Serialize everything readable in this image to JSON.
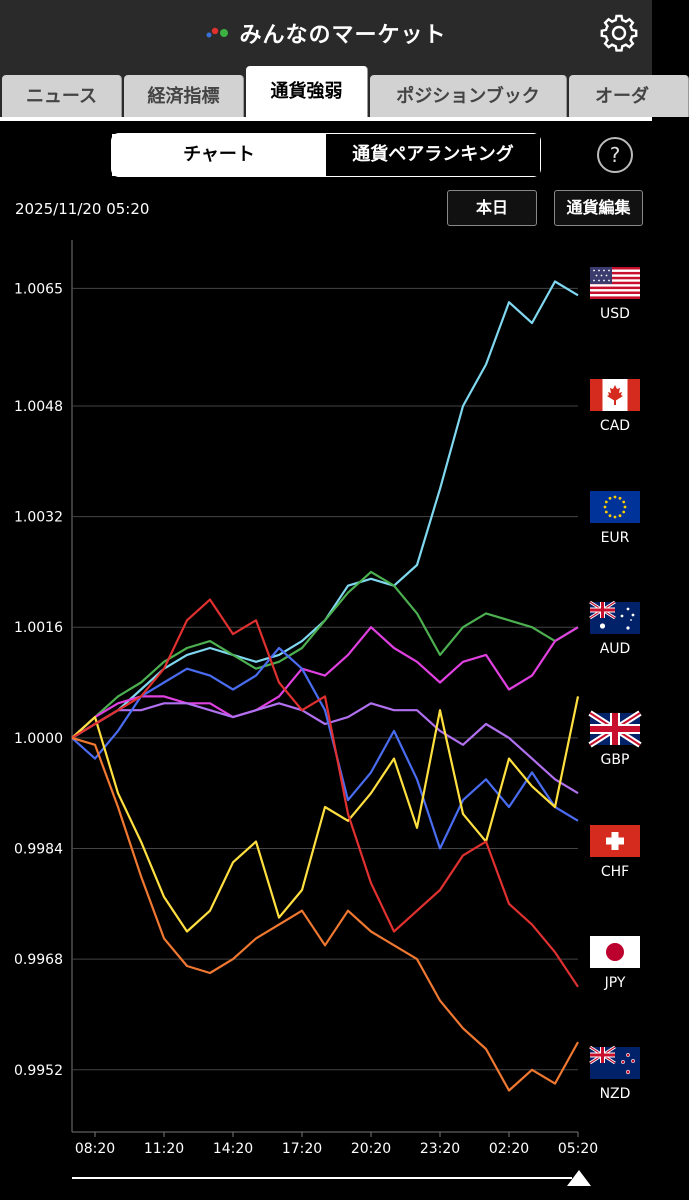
{
  "app": {
    "title": "みんなのマーケット"
  },
  "tabs": [
    {
      "label": "ニュース"
    },
    {
      "label": "経済指標"
    },
    {
      "label": "通貨強弱"
    },
    {
      "label": "ポジションブック"
    },
    {
      "label": "オーダ"
    }
  ],
  "segment": {
    "chart": "チャート",
    "ranking": "通貨ペアランキング"
  },
  "help_label": "?",
  "toolbar": {
    "timestamp": "2025/11/20 05:20",
    "period_button": "本日",
    "edit_button": "通貨編集"
  },
  "currencies": [
    {
      "code": "USD",
      "flag": "us"
    },
    {
      "code": "CAD",
      "flag": "ca"
    },
    {
      "code": "EUR",
      "flag": "eu"
    },
    {
      "code": "AUD",
      "flag": "au"
    },
    {
      "code": "GBP",
      "flag": "gb"
    },
    {
      "code": "CHF",
      "flag": "ch"
    },
    {
      "code": "JPY",
      "flag": "jp"
    },
    {
      "code": "NZD",
      "flag": "nz"
    }
  ],
  "chart_data": {
    "type": "line",
    "title": "",
    "xlabel": "",
    "ylabel": "",
    "x_ticks": [
      "08:20",
      "11:20",
      "14:20",
      "17:20",
      "20:20",
      "23:20",
      "02:20",
      "05:20"
    ],
    "x_tick_hours": [
      1,
      4,
      7,
      10,
      13,
      16,
      19,
      22
    ],
    "x_range_hours": [
      0,
      22
    ],
    "y_ticks": [
      1.0065,
      1.0048,
      1.0032,
      1.0016,
      1.0,
      0.9984,
      0.9968,
      0.9952
    ],
    "ylim": [
      0.9943,
      1.0072
    ],
    "grid": true,
    "series": [
      {
        "color": "#80d8f0",
        "points": [
          [
            0,
            1.0
          ],
          [
            1,
            1.0002
          ],
          [
            2,
            1.0004
          ],
          [
            3,
            1.0007
          ],
          [
            4,
            1.001
          ],
          [
            5,
            1.0012
          ],
          [
            6,
            1.0013
          ],
          [
            7,
            1.0012
          ],
          [
            8,
            1.0011
          ],
          [
            9,
            1.0012
          ],
          [
            10,
            1.0014
          ],
          [
            11,
            1.0017
          ],
          [
            12,
            1.0022
          ],
          [
            13,
            1.0023
          ],
          [
            14,
            1.0022
          ],
          [
            15,
            1.0025
          ],
          [
            16,
            1.0036
          ],
          [
            17,
            1.0048
          ],
          [
            18,
            1.0054
          ],
          [
            19,
            1.0063
          ],
          [
            20,
            1.006
          ],
          [
            21,
            1.0066
          ],
          [
            22,
            1.0064
          ]
        ]
      },
      {
        "color": "#4caf50",
        "points": [
          [
            0,
            1.0
          ],
          [
            1,
            1.0003
          ],
          [
            2,
            1.0006
          ],
          [
            3,
            1.0008
          ],
          [
            4,
            1.0011
          ],
          [
            5,
            1.0013
          ],
          [
            6,
            1.0014
          ],
          [
            7,
            1.0012
          ],
          [
            8,
            1.001
          ],
          [
            9,
            1.0011
          ],
          [
            10,
            1.0013
          ],
          [
            11,
            1.0017
          ],
          [
            12,
            1.0021
          ],
          [
            13,
            1.0024
          ],
          [
            14,
            1.0022
          ],
          [
            15,
            1.0018
          ],
          [
            16,
            1.0012
          ],
          [
            17,
            1.0016
          ],
          [
            18,
            1.0018
          ],
          [
            19,
            1.0017
          ],
          [
            20,
            1.0016
          ],
          [
            21,
            1.0014
          ],
          [
            22,
            1.0016
          ]
        ]
      },
      {
        "color": "#e040e0",
        "points": [
          [
            0,
            1.0
          ],
          [
            1,
            1.0003
          ],
          [
            2,
            1.0005
          ],
          [
            3,
            1.0006
          ],
          [
            4,
            1.0006
          ],
          [
            5,
            1.0005
          ],
          [
            6,
            1.0005
          ],
          [
            7,
            1.0003
          ],
          [
            8,
            1.0004
          ],
          [
            9,
            1.0006
          ],
          [
            10,
            1.001
          ],
          [
            11,
            1.0009
          ],
          [
            12,
            1.0012
          ],
          [
            13,
            1.0016
          ],
          [
            14,
            1.0013
          ],
          [
            15,
            1.0011
          ],
          [
            16,
            1.0008
          ],
          [
            17,
            1.0011
          ],
          [
            18,
            1.0012
          ],
          [
            19,
            1.0007
          ],
          [
            20,
            1.0009
          ],
          [
            21,
            1.0014
          ],
          [
            22,
            1.0016
          ]
        ]
      },
      {
        "color": "#b070f0",
        "points": [
          [
            0,
            1.0
          ],
          [
            1,
            1.0002
          ],
          [
            2,
            1.0004
          ],
          [
            3,
            1.0004
          ],
          [
            4,
            1.0005
          ],
          [
            5,
            1.0005
          ],
          [
            6,
            1.0004
          ],
          [
            7,
            1.0003
          ],
          [
            8,
            1.0004
          ],
          [
            9,
            1.0005
          ],
          [
            10,
            1.0004
          ],
          [
            11,
            1.0002
          ],
          [
            12,
            1.0003
          ],
          [
            13,
            1.0005
          ],
          [
            14,
            1.0004
          ],
          [
            15,
            1.0004
          ],
          [
            16,
            1.0001
          ],
          [
            17,
            0.9999
          ],
          [
            18,
            1.0002
          ],
          [
            19,
            1.0
          ],
          [
            20,
            0.9997
          ],
          [
            21,
            0.9994
          ],
          [
            22,
            0.9992
          ]
        ]
      },
      {
        "color": "#4a6cf0",
        "points": [
          [
            0,
            1.0
          ],
          [
            1,
            0.9997
          ],
          [
            2,
            1.0001
          ],
          [
            3,
            1.0006
          ],
          [
            4,
            1.0008
          ],
          [
            5,
            1.001
          ],
          [
            6,
            1.0009
          ],
          [
            7,
            1.0007
          ],
          [
            8,
            1.0009
          ],
          [
            9,
            1.0013
          ],
          [
            10,
            1.001
          ],
          [
            11,
            1.0004
          ],
          [
            12,
            0.9991
          ],
          [
            13,
            0.9995
          ],
          [
            14,
            1.0001
          ],
          [
            15,
            0.9994
          ],
          [
            16,
            0.9984
          ],
          [
            17,
            0.9991
          ],
          [
            18,
            0.9994
          ],
          [
            19,
            0.999
          ],
          [
            20,
            0.9995
          ],
          [
            21,
            0.999
          ],
          [
            22,
            0.9988
          ]
        ]
      },
      {
        "color": "#ffe040",
        "points": [
          [
            0,
            1.0
          ],
          [
            1,
            1.0003
          ],
          [
            2,
            0.9992
          ],
          [
            3,
            0.9985
          ],
          [
            4,
            0.9977
          ],
          [
            5,
            0.9972
          ],
          [
            6,
            0.9975
          ],
          [
            7,
            0.9982
          ],
          [
            8,
            0.9985
          ],
          [
            9,
            0.9974
          ],
          [
            10,
            0.9978
          ],
          [
            11,
            0.999
          ],
          [
            12,
            0.9988
          ],
          [
            13,
            0.9992
          ],
          [
            14,
            0.9997
          ],
          [
            15,
            0.9987
          ],
          [
            16,
            1.0004
          ],
          [
            17,
            0.9989
          ],
          [
            18,
            0.9985
          ],
          [
            19,
            0.9997
          ],
          [
            20,
            0.9993
          ],
          [
            21,
            0.999
          ],
          [
            22,
            1.0006
          ]
        ]
      },
      {
        "color": "#e03030",
        "points": [
          [
            0,
            1.0
          ],
          [
            1,
            1.0002
          ],
          [
            2,
            1.0004
          ],
          [
            3,
            1.0006
          ],
          [
            4,
            1.001
          ],
          [
            5,
            1.0017
          ],
          [
            6,
            1.002
          ],
          [
            7,
            1.0015
          ],
          [
            8,
            1.0017
          ],
          [
            9,
            1.0008
          ],
          [
            10,
            1.0004
          ],
          [
            11,
            1.0006
          ],
          [
            12,
            0.9989
          ],
          [
            13,
            0.9979
          ],
          [
            14,
            0.9972
          ],
          [
            15,
            0.9975
          ],
          [
            16,
            0.9978
          ],
          [
            17,
            0.9983
          ],
          [
            18,
            0.9985
          ],
          [
            19,
            0.9976
          ],
          [
            20,
            0.9973
          ],
          [
            21,
            0.9969
          ],
          [
            22,
            0.9964
          ]
        ]
      },
      {
        "color": "#f07830",
        "points": [
          [
            0,
            1.0
          ],
          [
            1,
            0.9999
          ],
          [
            2,
            0.999
          ],
          [
            3,
            0.998
          ],
          [
            4,
            0.9971
          ],
          [
            5,
            0.9967
          ],
          [
            6,
            0.9966
          ],
          [
            7,
            0.9968
          ],
          [
            8,
            0.9971
          ],
          [
            9,
            0.9973
          ],
          [
            10,
            0.9975
          ],
          [
            11,
            0.997
          ],
          [
            12,
            0.9975
          ],
          [
            13,
            0.9972
          ],
          [
            14,
            0.997
          ],
          [
            15,
            0.9968
          ],
          [
            16,
            0.9962
          ],
          [
            17,
            0.9958
          ],
          [
            18,
            0.9955
          ],
          [
            19,
            0.9949
          ],
          [
            20,
            0.9952
          ],
          [
            21,
            0.995
          ],
          [
            22,
            0.9956
          ]
        ]
      }
    ]
  }
}
